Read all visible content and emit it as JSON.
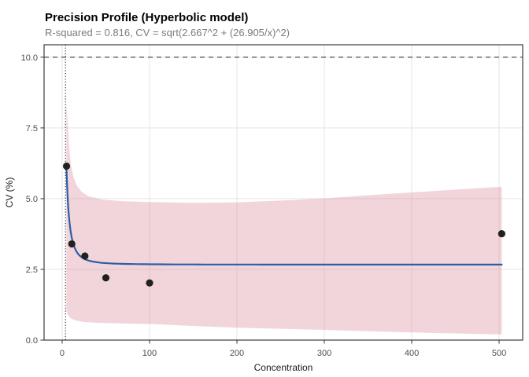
{
  "chart_data": {
    "type": "scatter",
    "title": "Precision Profile (Hyperbolic model)",
    "subtitle": "R-squared = 0.816, CV = sqrt(2.667^2 + (26.905/x)^2)",
    "xlabel": "Concentration",
    "ylabel": "CV (%)",
    "x_range": [
      -20.7,
      527
    ],
    "y_range": [
      0,
      10.44
    ],
    "x_ticks": [
      {
        "v": 0,
        "label": "0"
      },
      {
        "v": 100,
        "label": "100"
      },
      {
        "v": 200,
        "label": "200"
      },
      {
        "v": 300,
        "label": "300"
      },
      {
        "v": 400,
        "label": "400"
      },
      {
        "v": 500,
        "label": "500"
      }
    ],
    "y_ticks": [
      {
        "v": 0,
        "label": "0.0"
      },
      {
        "v": 2.5,
        "label": "2.5"
      },
      {
        "v": 5,
        "label": "5.0"
      },
      {
        "v": 7.5,
        "label": "7.5"
      },
      {
        "v": 10,
        "label": "10.0"
      }
    ],
    "points": [
      {
        "x": 5,
        "y": 6.15
      },
      {
        "x": 11,
        "y": 3.4
      },
      {
        "x": 26,
        "y": 2.97
      },
      {
        "x": 50,
        "y": 2.2
      },
      {
        "x": 100,
        "y": 2.02
      },
      {
        "x": 503,
        "y": 3.76
      }
    ],
    "fit_curve": {
      "model": "hyperbolic",
      "formula": "CV = sqrt(2.667^2 + (26.905/x)^2)",
      "a": 2.667,
      "b": 26.905,
      "r_squared": 0.816,
      "x_start": 5,
      "x_end": 503
    },
    "confidence_band": {
      "upper": [
        [
          4.8,
          8.4
        ],
        [
          6.5,
          7.6
        ],
        [
          8,
          6.8
        ],
        [
          10,
          6.2
        ],
        [
          13,
          5.75
        ],
        [
          17,
          5.45
        ],
        [
          22,
          5.25
        ],
        [
          30,
          5.08
        ],
        [
          45,
          4.97
        ],
        [
          70,
          4.91
        ],
        [
          100,
          4.88
        ],
        [
          150,
          4.85
        ],
        [
          200,
          4.87
        ],
        [
          250,
          4.93
        ],
        [
          300,
          5.01
        ],
        [
          350,
          5.12
        ],
        [
          400,
          5.22
        ],
        [
          450,
          5.32
        ],
        [
          503,
          5.42
        ]
      ],
      "lower": [
        [
          4.8,
          1.05
        ],
        [
          6,
          0.93
        ],
        [
          8,
          0.83
        ],
        [
          11,
          0.75
        ],
        [
          16,
          0.69
        ],
        [
          25,
          0.64
        ],
        [
          40,
          0.61
        ],
        [
          70,
          0.585
        ],
        [
          100,
          0.57
        ],
        [
          150,
          0.5
        ],
        [
          200,
          0.44
        ],
        [
          250,
          0.4
        ],
        [
          300,
          0.36
        ],
        [
          350,
          0.31
        ],
        [
          400,
          0.27
        ],
        [
          450,
          0.235
        ],
        [
          503,
          0.2
        ]
      ]
    },
    "reference_lines": {
      "horizontal_dashed_y": 10,
      "vertical_dotted_x": 3.8
    },
    "grid": "major-only",
    "legend": "none",
    "colors": {
      "curve": "#2b5ea7",
      "band": "#d87f93",
      "point": "#212121",
      "grid": "#e4e4e4",
      "panel_border": "#3c3c3c",
      "dashed_line": "#4d4d4d",
      "dotted_line": "#111111",
      "tick": "#333333",
      "background": "#ffffff"
    }
  }
}
